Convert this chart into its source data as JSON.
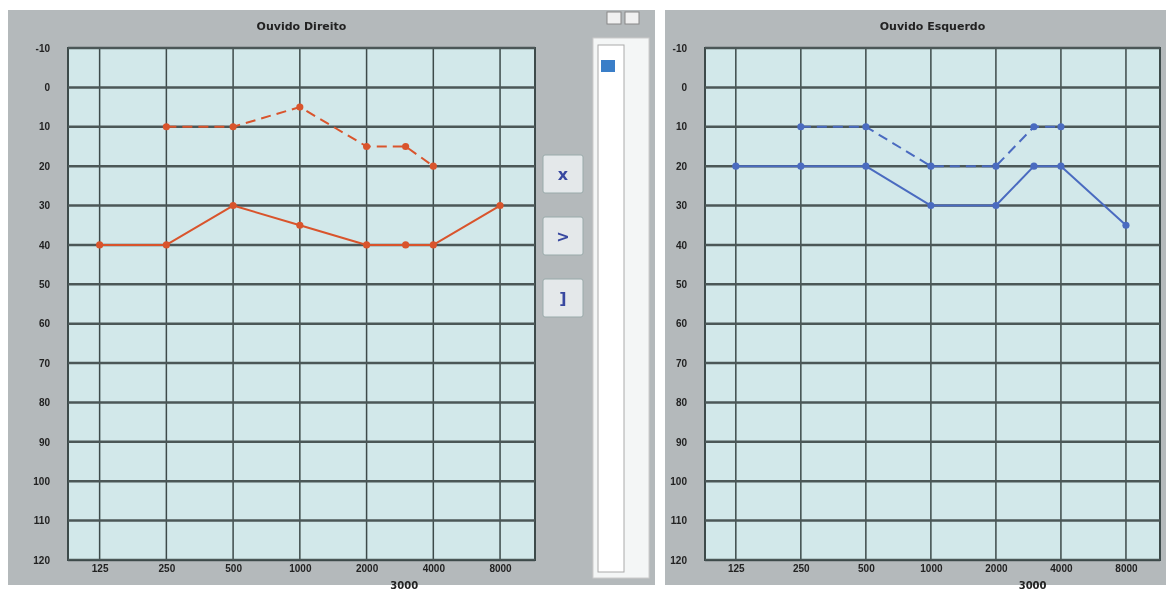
{
  "chart_data": [
    {
      "type": "line",
      "title": "Ouvido Direito",
      "annotations": [
        "3000"
      ],
      "x": [
        125,
        250,
        500,
        1000,
        2000,
        3000,
        4000,
        8000
      ],
      "log": "x",
      "xlim": [
        90,
        11500
      ],
      "xticks": [
        125,
        250,
        500,
        1000,
        2000,
        4000,
        8000
      ],
      "ylim": [
        120,
        -10
      ],
      "yticks": [
        -10,
        0,
        10,
        20,
        30,
        40,
        50,
        60,
        70,
        80,
        90,
        100,
        110,
        120
      ],
      "grid": true,
      "marker": "circle",
      "series": [
        {
          "color": "#d9542c",
          "line_style": "solid",
          "values": [
            40,
            40,
            30,
            35,
            40,
            40,
            40,
            30
          ]
        },
        {
          "color": "#d9542c",
          "line_style": "dashed",
          "values": [
            null,
            10,
            10,
            5,
            15,
            15,
            20,
            null
          ]
        }
      ]
    },
    {
      "type": "other",
      "annotations": [
        "x",
        ">",
        "]"
      ]
    },
    {
      "type": "line",
      "title": "Ouvido Esquerdo",
      "annotations": [
        "3000"
      ],
      "x": [
        125,
        250,
        500,
        1000,
        2000,
        3000,
        4000,
        8000
      ],
      "log": "x",
      "xlim": [
        90,
        11500
      ],
      "xticks": [
        125,
        250,
        500,
        1000,
        2000,
        4000,
        8000
      ],
      "ylim": [
        120,
        -10
      ],
      "yticks": [
        -10,
        0,
        10,
        20,
        30,
        40,
        50,
        60,
        70,
        80,
        90,
        100,
        110,
        120
      ],
      "grid": true,
      "marker": "circle",
      "series": [
        {
          "color": "#4a6bc0",
          "line_style": "solid",
          "values": [
            20,
            20,
            20,
            30,
            30,
            20,
            20,
            35
          ]
        },
        {
          "color": "#4a6bc0",
          "line_style": "dashed",
          "values": [
            null,
            10,
            10,
            20,
            20,
            10,
            10,
            null
          ]
        }
      ]
    }
  ]
}
